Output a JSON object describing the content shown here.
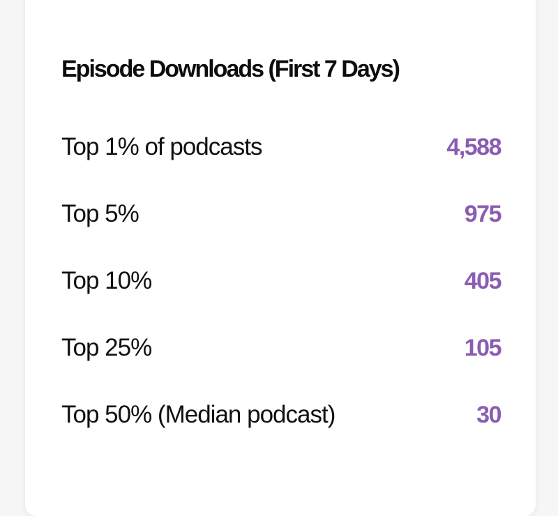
{
  "card": {
    "title": "Episode Downloads (First 7 Days)",
    "accent_color": "#8a5cb2",
    "rows": [
      {
        "label": "Top 1% of podcasts",
        "value": "4,588"
      },
      {
        "label": "Top 5%",
        "value": "975"
      },
      {
        "label": "Top 10%",
        "value": "405"
      },
      {
        "label": "Top 25%",
        "value": "105"
      },
      {
        "label": "Top 50% (Median podcast)",
        "value": "30"
      }
    ]
  }
}
